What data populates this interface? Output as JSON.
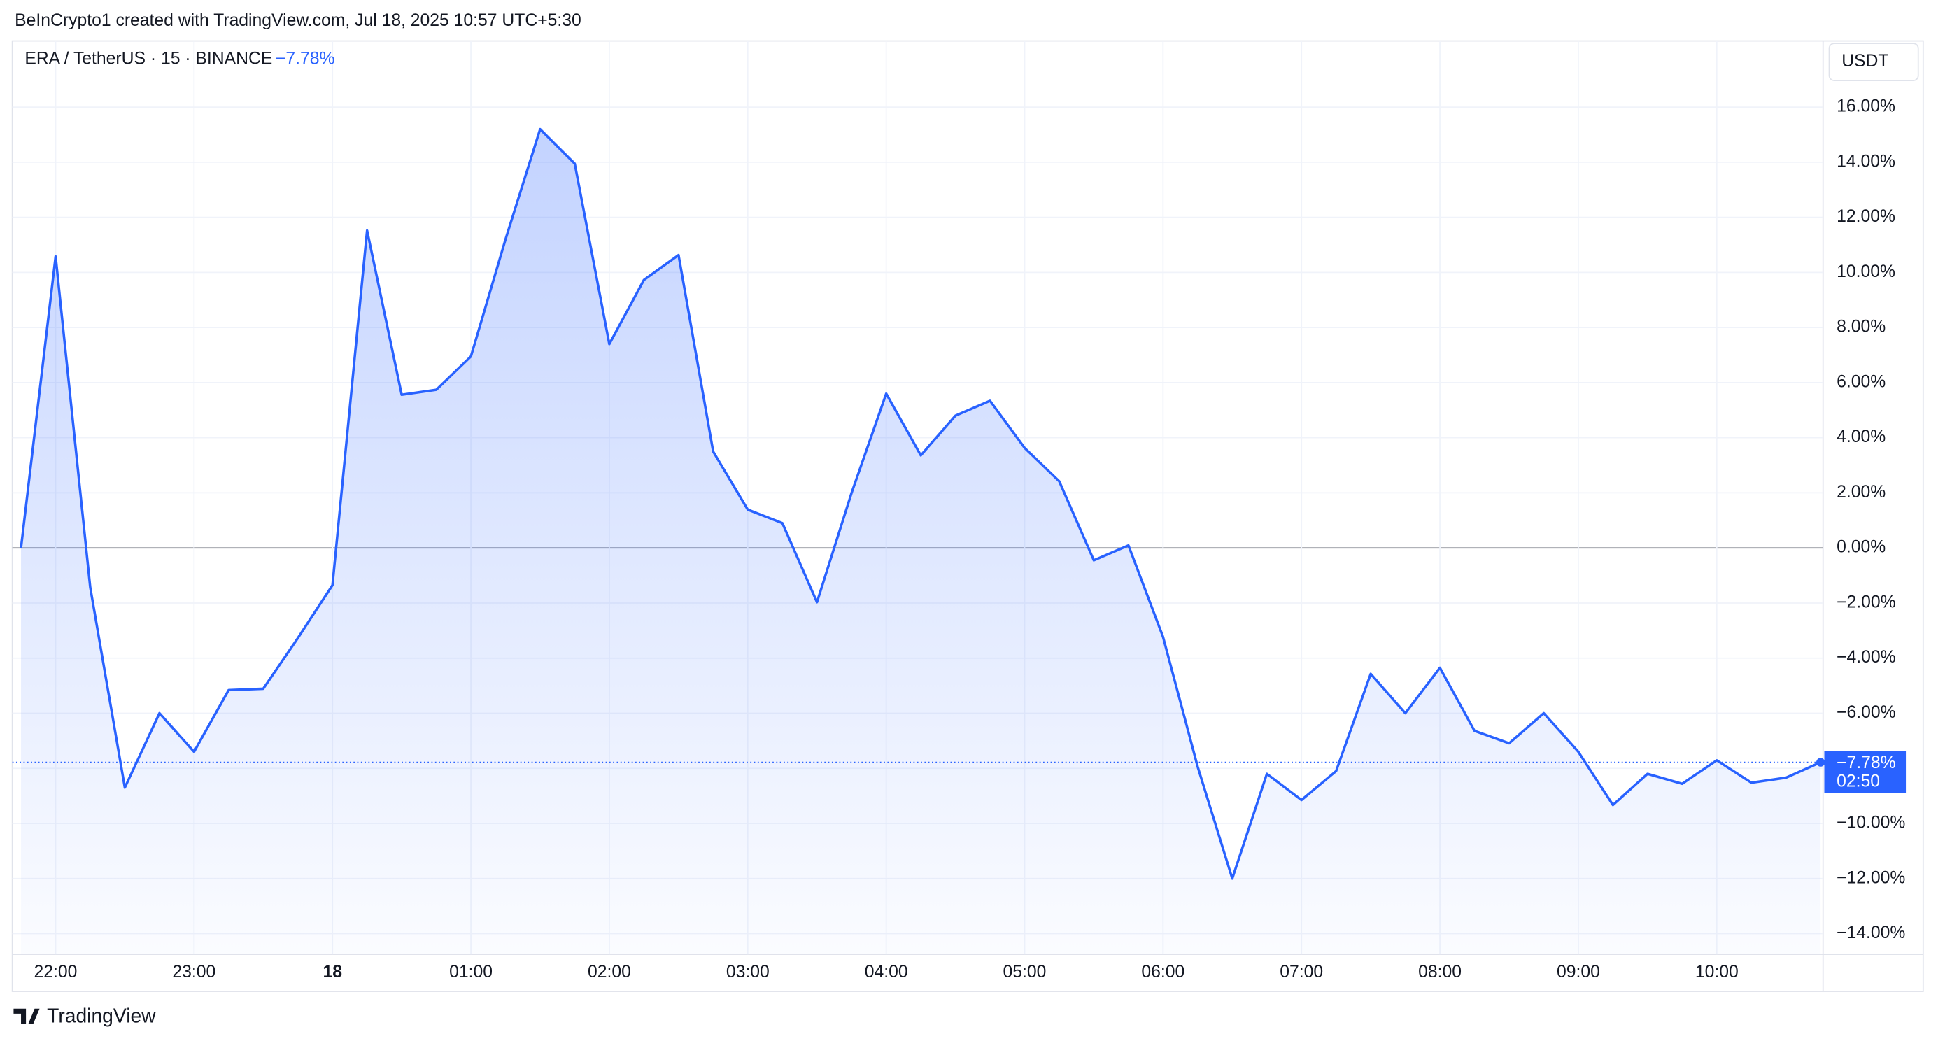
{
  "header": "BeInCrypto1 created with TradingView.com, Jul 18, 2025 10:57 UTC+5:30",
  "logo": "TradingView",
  "chart_data": {
    "type": "area",
    "legend_title": "ERA / TetherUS · 15 · BINANCE",
    "change_label": "−7.78%",
    "currency": "USDT",
    "last_value_label": "−7.78%",
    "countdown": "02:50",
    "x": [
      "21:45",
      "22:00",
      "22:15",
      "22:30",
      "22:45",
      "23:00",
      "23:15",
      "23:30",
      "23:45",
      "00:00",
      "00:15",
      "00:30",
      "00:45",
      "01:00",
      "01:15",
      "01:30",
      "01:45",
      "02:00",
      "02:15",
      "02:30",
      "02:45",
      "03:00",
      "03:15",
      "03:30",
      "03:45",
      "04:00",
      "04:15",
      "04:30",
      "04:45",
      "05:00",
      "05:15",
      "05:30",
      "05:45",
      "06:00",
      "06:15",
      "06:30",
      "06:45",
      "07:00",
      "07:15",
      "07:30",
      "07:45",
      "08:00",
      "08:15",
      "08:30",
      "08:45",
      "09:00",
      "09:15",
      "09:30",
      "09:45",
      "10:00",
      "10:15",
      "10:30",
      "10:45"
    ],
    "series": [
      {
        "name": "ERA / TetherUS",
        "color": "#2962ff",
        "values": [
          0,
          10.58,
          -1.43,
          -8.7,
          -6.0,
          -7.4,
          -5.16,
          -5.11,
          -3.27,
          -1.35,
          11.52,
          5.56,
          5.74,
          6.95,
          11.2,
          15.2,
          13.95,
          7.4,
          9.73,
          10.63,
          3.5,
          1.39,
          0.9,
          -1.97,
          2.0,
          5.6,
          3.36,
          4.8,
          5.34,
          3.63,
          2.42,
          -0.45,
          0.09,
          -3.23,
          -7.94,
          -12.0,
          -8.2,
          -9.15,
          -8.1,
          -4.57,
          -6.0,
          -4.35,
          -6.64,
          -7.09,
          -6.0,
          -7.4,
          -9.33,
          -8.2,
          -8.56,
          -7.71,
          -8.52,
          -8.34,
          -7.78
        ]
      }
    ],
    "ylim": [
      -14.75,
      18.4
    ],
    "yticks": [
      {
        "value": 16,
        "label": "16.00%"
      },
      {
        "value": 14,
        "label": "14.00%"
      },
      {
        "value": 12,
        "label": "12.00%"
      },
      {
        "value": 10,
        "label": "10.00%"
      },
      {
        "value": 8,
        "label": "8.00%"
      },
      {
        "value": 6,
        "label": "6.00%"
      },
      {
        "value": 4,
        "label": "4.00%"
      },
      {
        "value": 2,
        "label": "2.00%"
      },
      {
        "value": 0,
        "label": "0.00%"
      },
      {
        "value": -2,
        "label": "−2.00%"
      },
      {
        "value": -4,
        "label": "−4.00%"
      },
      {
        "value": -6,
        "label": "−6.00%"
      },
      {
        "value": -8,
        "label": "−8.00%"
      },
      {
        "value": -10,
        "label": "−10.00%"
      },
      {
        "value": -12,
        "label": "−12.00%"
      },
      {
        "value": -14,
        "label": "−14.00%"
      }
    ],
    "xticks": [
      "22:00",
      "23:00",
      {
        "value": "00:00",
        "label": "18"
      },
      "01:00",
      "02:00",
      "03:00",
      "04:00",
      "05:00",
      "06:00",
      "07:00",
      "08:00",
      "09:00",
      "10:00"
    ],
    "grid": true
  }
}
